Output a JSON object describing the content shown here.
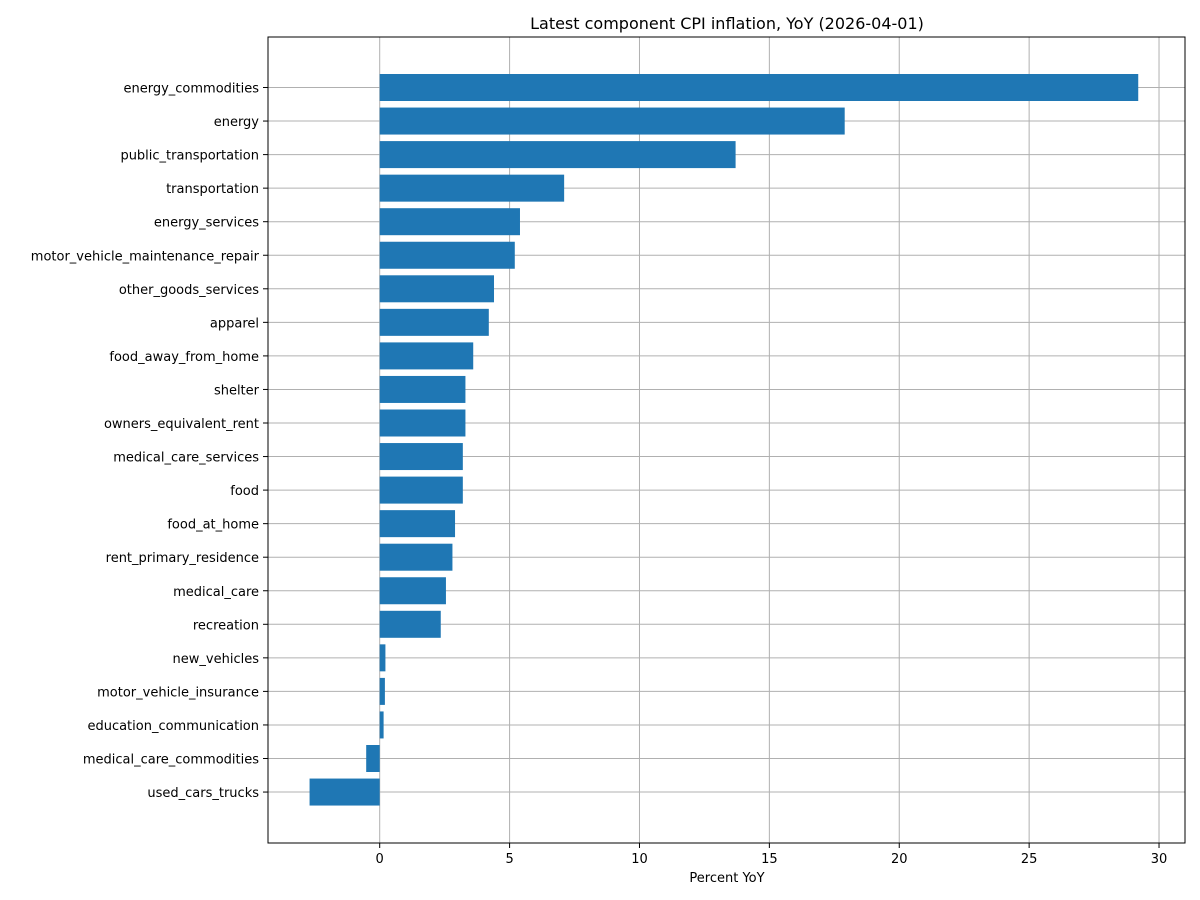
{
  "chart_data": {
    "type": "bar",
    "orientation": "horizontal",
    "title": "Latest component CPI inflation, YoY (2026-04-01)",
    "xlabel": "Percent YoY",
    "ylabel": "",
    "xlim": [
      -4.3,
      31.0
    ],
    "xticks": [
      0,
      5,
      10,
      15,
      20,
      25,
      30
    ],
    "grid": true,
    "bar_color": "#1f77b4",
    "categories": [
      "energy_commodities",
      "energy",
      "public_transportation",
      "transportation",
      "energy_services",
      "motor_vehicle_maintenance_repair",
      "other_goods_services",
      "apparel",
      "food_away_from_home",
      "shelter",
      "owners_equivalent_rent",
      "medical_care_services",
      "food",
      "food_at_home",
      "rent_primary_residence",
      "medical_care",
      "recreation",
      "new_vehicles",
      "motor_vehicle_insurance",
      "education_communication",
      "medical_care_commodities",
      "used_cars_trucks"
    ],
    "values": [
      29.2,
      17.9,
      13.7,
      7.1,
      5.4,
      5.2,
      4.4,
      4.2,
      3.6,
      3.3,
      3.3,
      3.2,
      3.2,
      2.9,
      2.8,
      2.55,
      2.35,
      0.22,
      0.2,
      0.15,
      -0.52,
      -2.7
    ]
  }
}
